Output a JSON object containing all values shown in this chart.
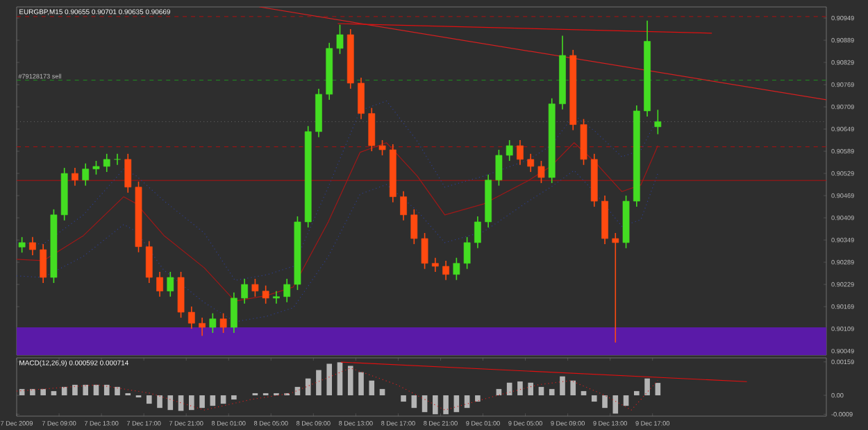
{
  "chart_data": [
    {
      "type": "candlestick",
      "title": "EURGBP,M15  0.90655 0.90701 0.90635 0.90669",
      "x": [
        "2009-12-07T05:30",
        "2009-12-07T06:30",
        "2009-12-07T07:30",
        "2009-12-07T08:30",
        "2009-12-07T09:30",
        "2009-12-07T10:30",
        "2009-12-07T11:30",
        "2009-12-07T12:30",
        "2009-12-07T13:30",
        "2009-12-07T14:30",
        "2009-12-07T15:30",
        "2009-12-07T16:30",
        "2009-12-07T17:30",
        "2009-12-07T18:30",
        "2009-12-07T19:30",
        "2009-12-07T20:30",
        "2009-12-07T21:30",
        "2009-12-07T22:30",
        "2009-12-07T23:30",
        "2009-12-08T00:30",
        "2009-12-08T01:30",
        "2009-12-08T02:30",
        "2009-12-08T03:30",
        "2009-12-08T04:30",
        "2009-12-08T05:30",
        "2009-12-08T06:30",
        "2009-12-08T07:30",
        "2009-12-08T08:30",
        "2009-12-08T09:30",
        "2009-12-08T10:30",
        "2009-12-08T11:30",
        "2009-12-08T12:30",
        "2009-12-08T13:30",
        "2009-12-08T14:30",
        "2009-12-08T15:30",
        "2009-12-08T16:30",
        "2009-12-08T17:30",
        "2009-12-08T18:30",
        "2009-12-08T19:30",
        "2009-12-08T20:30",
        "2009-12-08T21:30",
        "2009-12-08T22:30",
        "2009-12-08T23:30",
        "2009-12-09T00:30",
        "2009-12-09T01:30",
        "2009-12-09T02:30",
        "2009-12-09T03:30",
        "2009-12-09T04:30",
        "2009-12-09T05:30",
        "2009-12-09T06:30",
        "2009-12-09T07:30",
        "2009-12-09T08:30",
        "2009-12-09T09:30",
        "2009-12-09T10:30",
        "2009-12-09T11:30",
        "2009-12-09T12:30",
        "2009-12-09T13:30",
        "2009-12-09T14:30",
        "2009-12-09T15:30",
        "2009-12-09T16:30",
        "2009-12-09T17:30"
      ],
      "ohlc": [
        [
          0.9033,
          0.90357,
          0.90315,
          0.90342
        ],
        [
          0.90342,
          0.90357,
          0.90308,
          0.90323
        ],
        [
          0.90323,
          0.90338,
          0.90233,
          0.90248
        ],
        [
          0.90248,
          0.90432,
          0.90233,
          0.90417
        ],
        [
          0.90417,
          0.90544,
          0.90402,
          0.90529
        ],
        [
          0.90529,
          0.90544,
          0.90496,
          0.90511
        ],
        [
          0.90511,
          0.90556,
          0.90496,
          0.90541
        ],
        [
          0.90541,
          0.90563,
          0.90526,
          0.90548
        ],
        [
          0.90548,
          0.90582,
          0.90533,
          0.90567
        ],
        [
          0.90567,
          0.90582,
          0.90552,
          0.90567
        ],
        [
          0.90567,
          0.90582,
          0.90477,
          0.90492
        ],
        [
          0.90492,
          0.90507,
          0.90316,
          0.90331
        ],
        [
          0.90331,
          0.90346,
          0.90233,
          0.90248
        ],
        [
          0.90248,
          0.90263,
          0.90196,
          0.90211
        ],
        [
          0.90211,
          0.90263,
          0.90196,
          0.90248
        ],
        [
          0.90248,
          0.90263,
          0.90139,
          0.90154
        ],
        [
          0.90154,
          0.90169,
          0.90109,
          0.90124
        ],
        [
          0.90124,
          0.90139,
          0.9009,
          0.90113
        ],
        [
          0.90113,
          0.90151,
          0.90098,
          0.90136
        ],
        [
          0.90136,
          0.90151,
          0.90098,
          0.90113
        ],
        [
          0.90113,
          0.90207,
          0.90098,
          0.90192
        ],
        [
          0.90192,
          0.90244,
          0.90177,
          0.90229
        ],
        [
          0.90229,
          0.90244,
          0.90196,
          0.90211
        ],
        [
          0.90211,
          0.90226,
          0.90177,
          0.90192
        ],
        [
          0.90192,
          0.90211,
          0.90177,
          0.90196
        ],
        [
          0.90196,
          0.90244,
          0.90181,
          0.90229
        ],
        [
          0.90229,
          0.90413,
          0.90214,
          0.90398
        ],
        [
          0.90398,
          0.90657,
          0.90383,
          0.90642
        ],
        [
          0.90642,
          0.90758,
          0.90627,
          0.90743
        ],
        [
          0.90743,
          0.90882,
          0.90728,
          0.90867
        ],
        [
          0.90867,
          0.90931,
          0.90852,
          0.90904
        ],
        [
          0.90904,
          0.90919,
          0.90758,
          0.90773
        ],
        [
          0.90773,
          0.90788,
          0.90676,
          0.90691
        ],
        [
          0.90691,
          0.90706,
          0.90589,
          0.90604
        ],
        [
          0.90604,
          0.90619,
          0.90578,
          0.90593
        ],
        [
          0.90593,
          0.90608,
          0.90451,
          0.90466
        ],
        [
          0.90466,
          0.90481,
          0.90402,
          0.90417
        ],
        [
          0.90417,
          0.90432,
          0.90338,
          0.90353
        ],
        [
          0.90353,
          0.90368,
          0.90271,
          0.90286
        ],
        [
          0.90286,
          0.90301,
          0.90263,
          0.90278
        ],
        [
          0.90278,
          0.90293,
          0.90241,
          0.90256
        ],
        [
          0.90256,
          0.90301,
          0.90241,
          0.90286
        ],
        [
          0.90286,
          0.90357,
          0.90271,
          0.90342
        ],
        [
          0.90342,
          0.90413,
          0.90327,
          0.90398
        ],
        [
          0.90398,
          0.90526,
          0.90383,
          0.90511
        ],
        [
          0.90511,
          0.90593,
          0.90496,
          0.90578
        ],
        [
          0.90578,
          0.90619,
          0.90563,
          0.90604
        ],
        [
          0.90604,
          0.90619,
          0.90552,
          0.90567
        ],
        [
          0.90567,
          0.90582,
          0.90533,
          0.90548
        ],
        [
          0.90548,
          0.90563,
          0.90503,
          0.90518
        ],
        [
          0.90518,
          0.90732,
          0.90503,
          0.90717
        ],
        [
          0.90717,
          0.90901,
          0.90702,
          0.90848
        ],
        [
          0.90848,
          0.90863,
          0.90646,
          0.90661
        ],
        [
          0.90661,
          0.90676,
          0.90552,
          0.90567
        ],
        [
          0.90567,
          0.90582,
          0.90439,
          0.90454
        ],
        [
          0.90454,
          0.90469,
          0.90338,
          0.90353
        ],
        [
          0.90353,
          0.90368,
          0.90072,
          0.90342
        ],
        [
          0.90342,
          0.90469,
          0.90327,
          0.90454
        ],
        [
          0.90454,
          0.90713,
          0.90439,
          0.90698
        ],
        [
          0.90698,
          0.90942,
          0.90683,
          0.90886
        ],
        [
          0.90655,
          0.90701,
          0.90635,
          0.90669
        ]
      ],
      "colors": [
        "#44dd22",
        "#ff4a10",
        "#ff4a10",
        "#44dd22",
        "#44dd22",
        "#ff4a10",
        "#44dd22",
        "#44dd22",
        "#44dd22",
        "#44dd22",
        "#ff4a10",
        "#ff4a10",
        "#ff4a10",
        "#ff4a10",
        "#44dd22",
        "#ff4a10",
        "#ff4a10",
        "#ff4a10",
        "#44dd22",
        "#ff4a10",
        "#44dd22",
        "#44dd22",
        "#ff4a10",
        "#ff4a10",
        "#44dd22",
        "#44dd22",
        "#44dd22",
        "#44dd22",
        "#44dd22",
        "#44dd22",
        "#44dd22",
        "#ff4a10",
        "#ff4a10",
        "#ff4a10",
        "#ff4a10",
        "#ff4a10",
        "#ff4a10",
        "#ff4a10",
        "#ff4a10",
        "#ff4a10",
        "#ff4a10",
        "#44dd22",
        "#44dd22",
        "#44dd22",
        "#44dd22",
        "#44dd22",
        "#44dd22",
        "#ff4a10",
        "#ff4a10",
        "#ff4a10",
        "#44dd22",
        "#44dd22",
        "#ff4a10",
        "#ff4a10",
        "#ff4a10",
        "#ff4a10",
        "#ff4a10",
        "#44dd22",
        "#44dd22",
        "#44dd22",
        "#44dd22"
      ],
      "series": [
        {
          "type": "line",
          "color": "#2f3f8f",
          "line_style": "dotted",
          "x": [
            "2009-12-07T05:00",
            "2009-12-07T07:30",
            "2009-12-07T11:18",
            "2009-12-07T15:06",
            "2009-12-07T16:18",
            "2009-12-07T18:54",
            "2009-12-07T22:42",
            "2009-12-08T01:36",
            "2009-12-08T04:36",
            "2009-12-08T07:06",
            "2009-12-08T10:24",
            "2009-12-08T13:24",
            "2009-12-08T15:54",
            "2009-12-08T18:48",
            "2009-12-08T21:24",
            "2009-12-09T01:06",
            "2009-12-09T05:18",
            "2009-12-09T07:24",
            "2009-12-09T09:36",
            "2009-12-09T11:36",
            "2009-12-09T14:06",
            "2009-12-09T15:54",
            "2009-12-09T17:30"
          ],
          "values": [
            0.90342,
            0.90338,
            0.90417,
            0.90541,
            0.90522,
            0.90455,
            0.90368,
            0.9024,
            0.90255,
            0.90278,
            0.90492,
            0.90699,
            0.90725,
            0.90616,
            0.90492,
            0.90522,
            0.90566,
            0.90604,
            0.90687,
            0.90642,
            0.90574,
            0.90592,
            0.90679
          ]
        },
        {
          "type": "line",
          "color": "#a01818",
          "line_style": "solid",
          "x": [
            "2009-12-07T05:00",
            "2009-12-07T07:30",
            "2009-12-07T11:18",
            "2009-12-07T15:06",
            "2009-12-07T16:18",
            "2009-12-07T18:54",
            "2009-12-07T22:42",
            "2009-12-08T01:36",
            "2009-12-08T04:36",
            "2009-12-08T07:06",
            "2009-12-08T10:24",
            "2009-12-08T13:24",
            "2009-12-08T15:54",
            "2009-12-08T18:48",
            "2009-12-08T21:24",
            "2009-12-09T01:06",
            "2009-12-09T05:18",
            "2009-12-09T07:24",
            "2009-12-09T09:36",
            "2009-12-09T11:36",
            "2009-12-09T14:06",
            "2009-12-09T15:54",
            "2009-12-09T17:30"
          ],
          "values": [
            0.90297,
            0.90293,
            0.90361,
            0.90466,
            0.90447,
            0.90361,
            0.90274,
            0.90184,
            0.90199,
            0.90222,
            0.90398,
            0.90586,
            0.90612,
            0.90522,
            0.90417,
            0.90447,
            0.9051,
            0.90548,
            0.90612,
            0.90559,
            0.9048,
            0.90498,
            0.90604
          ]
        },
        {
          "type": "line",
          "color": "#2f3f8f",
          "line_style": "dotted",
          "x": [
            "2009-12-07T05:00",
            "2009-12-07T07:30",
            "2009-12-07T11:18",
            "2009-12-07T15:06",
            "2009-12-07T16:18",
            "2009-12-07T18:54",
            "2009-12-07T22:42",
            "2009-12-08T01:36",
            "2009-12-08T04:36",
            "2009-12-08T07:06",
            "2009-12-08T10:24",
            "2009-12-08T13:24",
            "2009-12-08T15:54",
            "2009-12-08T18:48",
            "2009-12-08T21:24",
            "2009-12-09T01:06",
            "2009-12-09T05:18",
            "2009-12-09T07:24",
            "2009-12-09T09:36",
            "2009-12-09T11:36",
            "2009-12-09T14:06",
            "2009-12-09T15:54",
            "2009-12-09T17:30"
          ],
          "values": [
            0.90252,
            0.90248,
            0.90305,
            0.90391,
            0.90372,
            0.90267,
            0.9018,
            0.90128,
            0.90143,
            0.90166,
            0.90304,
            0.90473,
            0.90499,
            0.90428,
            0.90342,
            0.90372,
            0.90454,
            0.90492,
            0.90537,
            0.90476,
            0.90386,
            0.90404,
            0.90529
          ]
        },
        {
          "type": "line",
          "color": "#d42020",
          "line_style": "solid",
          "x": [
            "2009-12-08T03:54",
            "2009-12-10T09:24"
          ],
          "values": [
            0.90979,
            0.90728
          ]
        },
        {
          "type": "line",
          "color": "#e01010",
          "line_style": "solid",
          "x": [
            "2009-12-08T11:18",
            "2009-12-09T22:36"
          ],
          "values": [
            0.90934,
            0.90908
          ]
        }
      ],
      "ref_lines": [
        {
          "axis": "y",
          "value": 0.90953,
          "color": "#b01010",
          "line_style": "dashed"
        },
        {
          "axis": "y",
          "value": 0.90781,
          "label": "#79128173 sell",
          "color": "#1f8f1f",
          "line_style": "dashed"
        },
        {
          "axis": "y",
          "value": 0.90669,
          "color": "#6a6a6a",
          "line_style": "dotted"
        },
        {
          "axis": "y",
          "value": 0.90601,
          "color": "#b01010",
          "line_style": "dashed"
        },
        {
          "axis": "y",
          "value": 0.9051,
          "color": "#b01010",
          "line_style": "solid"
        }
      ],
      "bands": [
        {
          "axis": "y",
          "from": 0.90038,
          "to": 0.90113,
          "color": "#5a1aa8"
        }
      ],
      "xlim": [
        "2009-12-07T05:00",
        "2009-12-10T09:24"
      ],
      "ylim": [
        0.90038,
        0.90979
      ],
      "yticks": [
        0.90949,
        0.90889,
        0.90829,
        0.90769,
        0.90709,
        0.90649,
        0.90589,
        0.90529,
        0.90469,
        0.90409,
        0.90349,
        0.90289,
        0.90229,
        0.90169,
        0.90109,
        0.90049
      ],
      "tick_labels": "y",
      "grid": false
    },
    {
      "type": "bar",
      "title": "MACD(12,26,9) 0.000592 0.000714",
      "series": [
        {
          "type": "bar",
          "color": "#b4b4b4",
          "x": [
            "2009-12-07T05:30",
            "2009-12-07T06:30",
            "2009-12-07T07:30",
            "2009-12-07T08:30",
            "2009-12-07T09:30",
            "2009-12-07T10:30",
            "2009-12-07T11:30",
            "2009-12-07T12:30",
            "2009-12-07T13:30",
            "2009-12-07T14:30",
            "2009-12-07T15:30",
            "2009-12-07T16:30",
            "2009-12-07T17:30",
            "2009-12-07T18:30",
            "2009-12-07T19:30",
            "2009-12-07T20:30",
            "2009-12-07T21:30",
            "2009-12-07T22:30",
            "2009-12-07T23:30",
            "2009-12-08T00:30",
            "2009-12-08T01:30",
            "2009-12-08T02:30",
            "2009-12-08T03:30",
            "2009-12-08T04:30",
            "2009-12-08T05:30",
            "2009-12-08T06:30",
            "2009-12-08T07:30",
            "2009-12-08T08:30",
            "2009-12-08T09:30",
            "2009-12-08T10:30",
            "2009-12-08T11:30",
            "2009-12-08T12:30",
            "2009-12-08T13:30",
            "2009-12-08T14:30",
            "2009-12-08T15:30",
            "2009-12-08T16:30",
            "2009-12-08T17:30",
            "2009-12-08T18:30",
            "2009-12-08T19:30",
            "2009-12-08T20:30",
            "2009-12-08T21:30",
            "2009-12-08T22:30",
            "2009-12-08T23:30",
            "2009-12-09T00:30",
            "2009-12-09T01:30",
            "2009-12-09T02:30",
            "2009-12-09T03:30",
            "2009-12-09T04:30",
            "2009-12-09T05:30",
            "2009-12-09T06:30",
            "2009-12-09T07:30",
            "2009-12-09T08:30",
            "2009-12-09T09:30",
            "2009-12-09T10:30",
            "2009-12-09T11:30",
            "2009-12-09T12:30",
            "2009-12-09T13:30",
            "2009-12-09T14:30",
            "2009-12-09T15:30",
            "2009-12-09T16:30",
            "2009-12-09T17:30"
          ],
          "values": [
            0.0003,
            0.0003,
            0.0003,
            0.0002,
            0.0004,
            0.0005,
            0.0005,
            0.0005,
            0.0005,
            0.0004,
            0.0001,
            -0.0001,
            -0.0004,
            -0.0006,
            -0.0007,
            -0.00074,
            -0.0007,
            -0.0006,
            -0.0005,
            -0.0004,
            -0.0002,
            0.0,
            0.0001,
            0.0001,
            0.0001,
            0.0001,
            0.0004,
            0.0008,
            0.0012,
            0.0015,
            0.00157,
            0.0014,
            0.0011,
            0.0007,
            0.0003,
            0.0,
            -0.0003,
            -0.0006,
            -0.0008,
            -0.0009,
            -0.0009,
            -0.0008,
            -0.0006,
            -0.0003,
            0.0,
            0.0003,
            0.0006,
            0.00066,
            0.0006,
            0.0004,
            0.0003,
            0.0009,
            0.0007,
            0.0002,
            -0.0003,
            -0.0006,
            -0.00087,
            -0.0005,
            0.0002,
            0.0008,
            0.00059
          ]
        },
        {
          "type": "line",
          "color": "#d42020",
          "line_style": "dotted",
          "x": [
            "2009-12-07T05:00",
            "2009-12-07T12:36",
            "2009-12-07T17:36",
            "2009-12-07T22:42",
            "2009-12-08T03:06",
            "2009-12-08T06:54",
            "2009-12-08T12:30",
            "2009-12-08T16:54",
            "2009-12-08T21:24",
            "2009-12-09T02:24",
            "2009-12-09T06:12",
            "2009-12-09T09:18",
            "2009-12-09T12:30",
            "2009-12-09T15:00",
            "2009-12-09T17:30"
          ],
          "values": [
            0.0002,
            0.0005,
            0.0001,
            -0.0007,
            -0.0002,
            0.0001,
            0.0013,
            0.0005,
            -0.0007,
            0.0,
            0.0005,
            0.0007,
            0.0,
            -0.0007,
            0.00071
          ]
        },
        {
          "type": "line",
          "color": "#e01010",
          "line_style": "solid",
          "x": [
            "2009-12-08T11:36",
            "2009-12-10T01:54"
          ],
          "values": [
            0.00158,
            0.00065
          ]
        }
      ],
      "xlim": [
        "2009-12-07T05:00",
        "2009-12-10T09:24"
      ],
      "ylim": [
        -0.00099,
        0.00178
      ],
      "yticks": [
        0.00159,
        {
          "value": 0,
          "label": "0.00"
        },
        -0.0009
      ],
      "xticks": [
        {
          "value": "2009-12-07T05:00",
          "label": "7 Dec 2009"
        },
        {
          "value": "2009-12-07T09:00",
          "label": "7 Dec 09:00"
        },
        {
          "value": "2009-12-07T13:00",
          "label": "7 Dec 13:00"
        },
        {
          "value": "2009-12-07T17:00",
          "label": "7 Dec 17:00"
        },
        {
          "value": "2009-12-07T21:00",
          "label": "7 Dec 21:00"
        },
        {
          "value": "2009-12-08T01:00",
          "label": "8 Dec 01:00"
        },
        {
          "value": "2009-12-08T05:00",
          "label": "8 Dec 05:00"
        },
        {
          "value": "2009-12-08T09:00",
          "label": "8 Dec 09:00"
        },
        {
          "value": "2009-12-08T13:00",
          "label": "8 Dec 13:00"
        },
        {
          "value": "2009-12-08T17:00",
          "label": "8 Dec 17:00"
        },
        {
          "value": "2009-12-08T21:00",
          "label": "8 Dec 21:00"
        },
        {
          "value": "2009-12-09T01:00",
          "label": "9 Dec 01:00"
        },
        {
          "value": "2009-12-09T05:00",
          "label": "9 Dec 05:00"
        },
        {
          "value": "2009-12-09T09:00",
          "label": "9 Dec 09:00"
        },
        {
          "value": "2009-12-09T13:00",
          "label": "9 Dec 13:00"
        },
        {
          "value": "2009-12-09T17:00",
          "label": "9 Dec 17:00"
        }
      ],
      "grid": false
    }
  ]
}
